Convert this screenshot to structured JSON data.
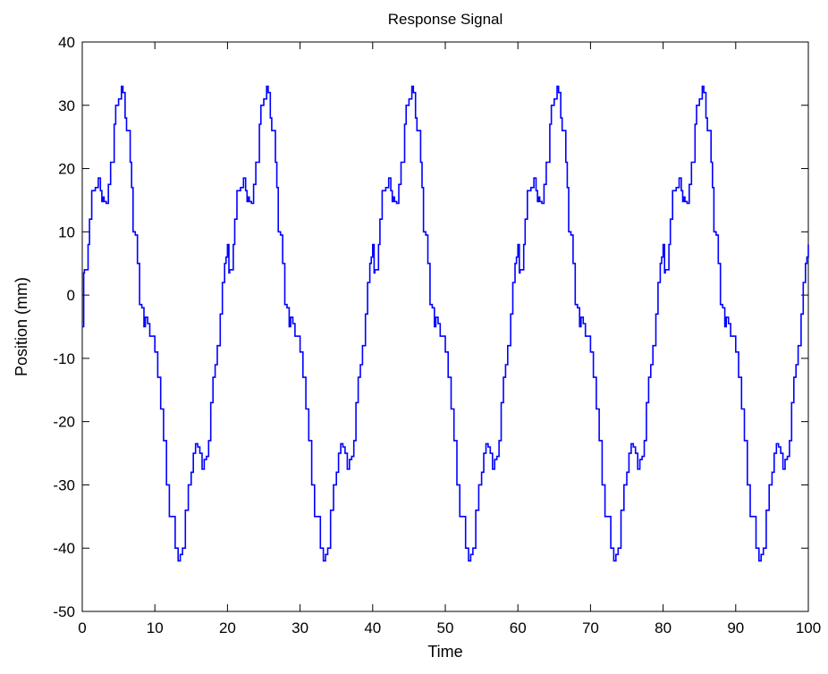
{
  "chart_data": {
    "type": "line",
    "title": "Response Signal",
    "xlabel": "Time",
    "ylabel": "Position (mm)",
    "xlim": [
      0,
      100
    ],
    "ylim": [
      -50,
      40
    ],
    "xticks": [
      0,
      10,
      20,
      30,
      40,
      50,
      60,
      70,
      80,
      90,
      100
    ],
    "yticks": [
      -50,
      -40,
      -30,
      -20,
      -10,
      0,
      10,
      20,
      30,
      40
    ],
    "grid": false,
    "line_color": "#0000ff",
    "period": 20,
    "series": [
      {
        "x": [
          0,
          0.2,
          0.3,
          0.8,
          1.0,
          1.3,
          1.8,
          2.2,
          2.5,
          2.7,
          2.9,
          3.0,
          3.3,
          3.6,
          3.9,
          4.2,
          4.4,
          4.6,
          5.0,
          5.4,
          5.6,
          5.9,
          6.1,
          6.4,
          6.6,
          6.8,
          7.0,
          7.3,
          7.6,
          7.9,
          8.2,
          8.5,
          8.7,
          9.0,
          9.3,
          9.6,
          10.0,
          10.4,
          10.8,
          11.2,
          11.6,
          12.0,
          12.4,
          12.8,
          13.2,
          13.5,
          13.8,
          14.2,
          14.6,
          15.0,
          15.3,
          15.6,
          15.9,
          16.2,
          16.5,
          16.8,
          17.1,
          17.4,
          17.7,
          18.0,
          18.3,
          18.6,
          19.0,
          19.3,
          19.6,
          19.8,
          20.0
        ],
        "y": [
          -5,
          3.5,
          4,
          8,
          12,
          16.5,
          17,
          18.5,
          16.5,
          14.8,
          15.5,
          14.8,
          14.5,
          17.5,
          21,
          21,
          27,
          30,
          31,
          33,
          32,
          28,
          26,
          26,
          21,
          17,
          10,
          9.5,
          5,
          -1.5,
          -2,
          -5,
          -3.5,
          -4.5,
          -6.5,
          -6.5,
          -9,
          -13,
          -18,
          -23,
          -30,
          -35,
          -35,
          -40,
          -42,
          -41,
          -40,
          -34,
          -30,
          -28,
          -25,
          -23.5,
          -24,
          -25,
          -27.5,
          -26,
          -25.5,
          -23,
          -17,
          -13,
          -11,
          -8,
          -3,
          2,
          5,
          6,
          8
        ]
      }
    ]
  }
}
